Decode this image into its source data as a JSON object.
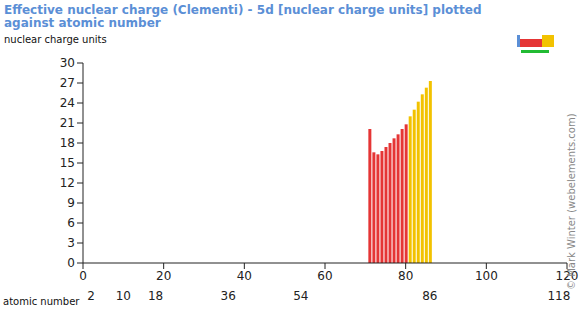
{
  "chart_data": {
    "type": "bar",
    "title": "Effective nuclear charge (Clementi) - 5d [nuclear charge units] plotted against atomic number",
    "ylabel": "nuclear charge units",
    "xlabel": "atomic number",
    "annotation": "© Mark Winter (webelements.com)",
    "x": [
      71,
      72,
      73,
      74,
      75,
      76,
      77,
      78,
      79,
      80,
      81,
      82,
      83,
      84,
      85,
      86
    ],
    "values": [
      20.1,
      16.6,
      16.3,
      16.8,
      17.4,
      18.0,
      18.7,
      19.3,
      20.1,
      20.8,
      22.0,
      23.0,
      24.2,
      25.3,
      26.3,
      27.3
    ],
    "colors": [
      "#e53535",
      "#e53535",
      "#e53535",
      "#e53535",
      "#e53535",
      "#e53535",
      "#e53535",
      "#e53535",
      "#e53535",
      "#e53535",
      "#f2c200",
      "#f2c200",
      "#f2c200",
      "#f2c200",
      "#f2c200",
      "#f2c200"
    ],
    "xlim": [
      0,
      120
    ],
    "xticks": [
      0,
      20,
      40,
      60,
      80,
      100,
      120
    ],
    "xticks_secondary": [
      2,
      10,
      18,
      36,
      54,
      86,
      118
    ],
    "ylim": [
      0,
      30
    ],
    "yticks": [
      0,
      3,
      6,
      9,
      12,
      15,
      18,
      21,
      24,
      27,
      30
    ],
    "grid": false
  }
}
